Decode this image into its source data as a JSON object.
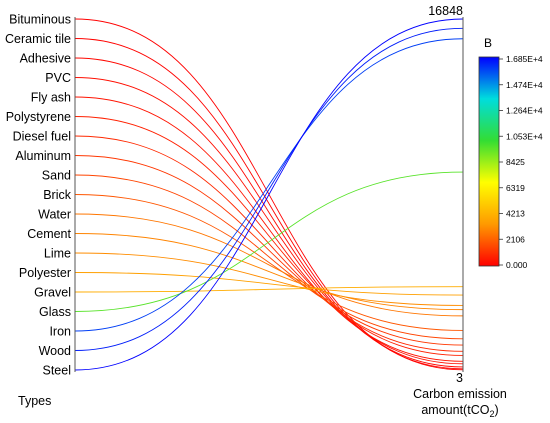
{
  "chart_data": {
    "type": "parallel-coordinates",
    "left_axis": {
      "label": "Types",
      "categories": [
        "Bituminous",
        "Ceramic tile",
        "Adhesive",
        "PVC",
        "Fly ash",
        "Polystyrene",
        "Diesel fuel",
        "Aluminum",
        "Sand",
        "Brick",
        "Water",
        "Cement",
        "Lime",
        "Polyester",
        "Gravel",
        "Glass",
        "Iron",
        "Wood",
        "Steel"
      ]
    },
    "right_axis": {
      "label_line1": "Carbon emission",
      "label_line2_prefix": "amount(tCO",
      "label_line2_sub": "2",
      "label_line2_suffix": ")",
      "max_label": "16848",
      "min_label": "3",
      "range": [
        3,
        16848
      ]
    },
    "values": [
      10,
      60,
      150,
      300,
      420,
      700,
      900,
      1200,
      1500,
      1900,
      2600,
      2900,
      3100,
      3600,
      4000,
      9500,
      15900,
      16400,
      16848
    ],
    "color_scale": {
      "title": "B",
      "range": [
        0,
        16848
      ],
      "ticks": [
        "1.685E+4",
        "1.474E+4",
        "1.264E+4",
        "1.053E+4",
        "8425",
        "6319",
        "4213",
        "2106",
        "0.000"
      ],
      "stops": [
        "#ff0000",
        "#ff9900",
        "#ffff00",
        "#33dd33",
        "#00dddd",
        "#0000ff"
      ]
    }
  }
}
